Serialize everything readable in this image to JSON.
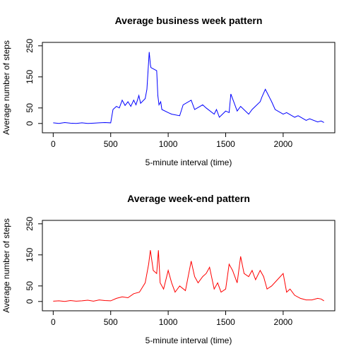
{
  "chart_data": [
    {
      "type": "line",
      "title": "Average business week pattern",
      "xlabel": "5-minute interval (time)",
      "ylabel": "Average number of steps",
      "xlim": [
        -94.2,
        2449.2
      ],
      "xticks": [
        0,
        500,
        1000,
        1500,
        2000
      ],
      "ylim": [
        -30,
        261
      ],
      "yticks": [
        0,
        50,
        150,
        250
      ],
      "x": [
        0,
        50,
        100,
        150,
        200,
        250,
        300,
        350,
        400,
        450,
        500,
        520,
        550,
        575,
        600,
        625,
        650,
        675,
        700,
        720,
        745,
        760,
        800,
        815,
        830,
        835,
        845,
        850,
        900,
        910,
        920,
        935,
        945,
        1000,
        1030,
        1100,
        1130,
        1200,
        1230,
        1300,
        1330,
        1400,
        1420,
        1445,
        1500,
        1530,
        1545,
        1600,
        1630,
        1700,
        1730,
        1800,
        1815,
        1845,
        1900,
        1930,
        2000,
        2030,
        2100,
        2130,
        2200,
        2230,
        2300,
        2330,
        2355
      ],
      "series": [
        {
          "name": "business",
          "color": "#0000ff",
          "values": [
            2,
            0,
            3,
            1,
            0,
            2,
            0,
            1,
            2,
            3,
            2,
            45,
            55,
            50,
            75,
            58,
            70,
            55,
            75,
            60,
            90,
            65,
            80,
            110,
            200,
            230,
            190,
            180,
            170,
            90,
            60,
            70,
            45,
            35,
            30,
            25,
            60,
            75,
            45,
            60,
            50,
            30,
            45,
            20,
            40,
            35,
            95,
            40,
            55,
            30,
            45,
            70,
            85,
            110,
            70,
            45,
            30,
            35,
            20,
            25,
            10,
            15,
            5,
            8,
            3
          ]
        }
      ]
    },
    {
      "type": "line",
      "title": "Average week-end pattern",
      "xlabel": "5-minute interval (time)",
      "ylabel": "Average number of steps",
      "xlim": [
        -94.2,
        2449.2
      ],
      "xticks": [
        0,
        500,
        1000,
        1500,
        2000
      ],
      "ylim": [
        -30,
        261
      ],
      "yticks": [
        0,
        50,
        150,
        250
      ],
      "x": [
        0,
        50,
        100,
        150,
        200,
        250,
        300,
        350,
        400,
        450,
        500,
        550,
        600,
        650,
        700,
        750,
        800,
        830,
        845,
        870,
        900,
        915,
        930,
        960,
        1000,
        1030,
        1060,
        1100,
        1150,
        1200,
        1230,
        1260,
        1300,
        1330,
        1360,
        1400,
        1430,
        1460,
        1500,
        1530,
        1560,
        1600,
        1630,
        1660,
        1700,
        1730,
        1760,
        1800,
        1830,
        1860,
        1900,
        1950,
        2000,
        2030,
        2060,
        2100,
        2150,
        2200,
        2250,
        2300,
        2330,
        2355
      ],
      "series": [
        {
          "name": "week-end",
          "color": "#ff0000",
          "values": [
            1,
            2,
            0,
            3,
            1,
            2,
            4,
            1,
            5,
            3,
            2,
            10,
            15,
            12,
            25,
            30,
            60,
            120,
            165,
            100,
            90,
            165,
            60,
            40,
            100,
            60,
            30,
            50,
            35,
            130,
            80,
            60,
            80,
            90,
            110,
            40,
            60,
            30,
            40,
            120,
            100,
            60,
            145,
            90,
            80,
            100,
            70,
            100,
            80,
            40,
            50,
            70,
            90,
            30,
            40,
            20,
            10,
            5,
            5,
            10,
            8,
            2
          ]
        }
      ]
    }
  ]
}
